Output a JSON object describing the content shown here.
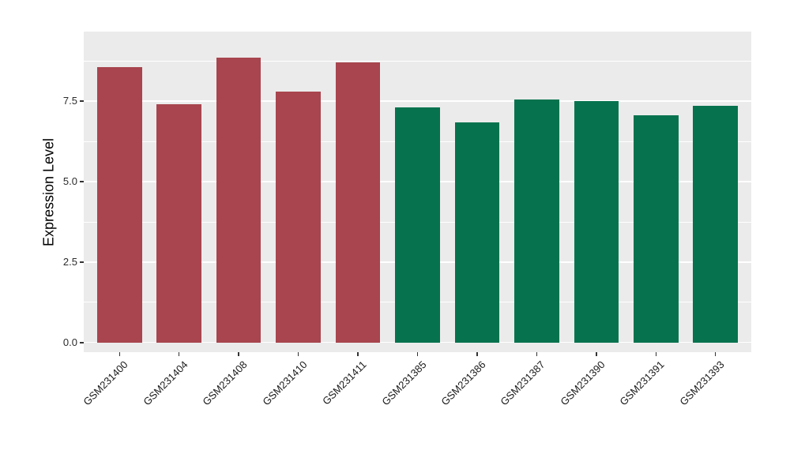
{
  "chart_data": {
    "type": "bar",
    "title": "",
    "xlabel": "",
    "ylabel": "Expression Level",
    "categories": [
      "GSM231400",
      "GSM231404",
      "GSM231408",
      "GSM231410",
      "GSM231411",
      "GSM231385",
      "GSM231386",
      "GSM231387",
      "GSM231390",
      "GSM231391",
      "GSM231393"
    ],
    "values": [
      8.55,
      7.4,
      8.85,
      7.8,
      8.7,
      7.3,
      6.85,
      7.55,
      7.5,
      7.05,
      7.35
    ],
    "bar_colors": [
      "#A8454E",
      "#A8454E",
      "#A8454E",
      "#A8454E",
      "#A8454E",
      "#06734E",
      "#06734E",
      "#06734E",
      "#06734E",
      "#06734E",
      "#06734E"
    ],
    "group_colors": {
      "left-group": "#A8454E",
      "right-group": "#06734E"
    },
    "yticks": [
      0.0,
      2.5,
      5.0,
      7.5
    ],
    "ytick_labels": [
      "0.0",
      "2.5",
      "5.0",
      "7.5"
    ],
    "yticks_minor": [
      1.25,
      3.75,
      6.25,
      8.75
    ],
    "ylim": [
      -0.3,
      9.66
    ],
    "grid": true,
    "legend": "none",
    "panel_background": "#EBEBEB",
    "gridline_color": "#FFFFFF",
    "figure_background": "#FFFFFF"
  }
}
